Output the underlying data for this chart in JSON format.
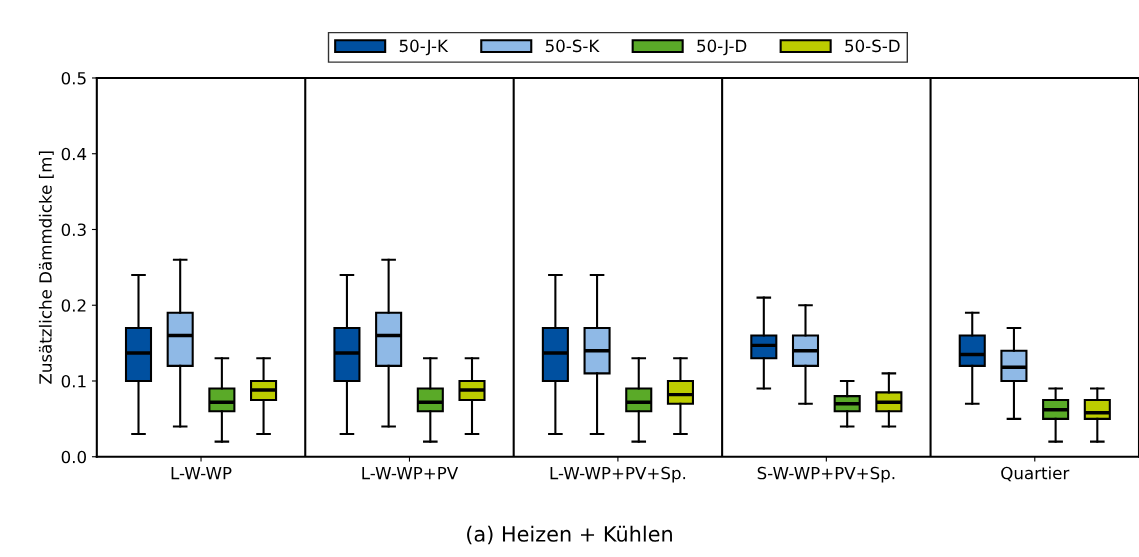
{
  "chart_data": {
    "type": "box",
    "categories": [
      "L-W-WP",
      "L-W-WP+PV",
      "L-W-WP+PV+Sp.",
      "S-W-WP+PV+Sp.",
      "Quartier"
    ],
    "ylabel": "Zusätzliche Dämmdicke [m]",
    "ylim": [
      0,
      0.5
    ],
    "yticks": [
      {
        "value": 0,
        "label": "0.0"
      },
      0.1,
      0.2,
      0.3,
      0.4,
      0.5
    ],
    "grid": "x",
    "legend": "top",
    "annotations": [
      "(a) Heizen + Kühlen"
    ],
    "series": [
      {
        "name": "50-J-K",
        "color": "#0050a0",
        "boxes": [
          {
            "low": 0.03,
            "q1": 0.1,
            "median": 0.137,
            "q3": 0.17,
            "high": 0.24
          },
          {
            "low": 0.03,
            "q1": 0.1,
            "median": 0.137,
            "q3": 0.17,
            "high": 0.24
          },
          {
            "low": 0.03,
            "q1": 0.1,
            "median": 0.137,
            "q3": 0.17,
            "high": 0.24
          },
          {
            "low": 0.09,
            "q1": 0.13,
            "median": 0.147,
            "q3": 0.16,
            "high": 0.21
          },
          {
            "low": 0.07,
            "q1": 0.12,
            "median": 0.135,
            "q3": 0.16,
            "high": 0.19
          }
        ]
      },
      {
        "name": "50-S-K",
        "color": "#8fb9e6",
        "boxes": [
          {
            "low": 0.04,
            "q1": 0.12,
            "median": 0.16,
            "q3": 0.19,
            "high": 0.26
          },
          {
            "low": 0.04,
            "q1": 0.12,
            "median": 0.16,
            "q3": 0.19,
            "high": 0.26
          },
          {
            "low": 0.03,
            "q1": 0.11,
            "median": 0.14,
            "q3": 0.17,
            "high": 0.24
          },
          {
            "low": 0.07,
            "q1": 0.12,
            "median": 0.14,
            "q3": 0.16,
            "high": 0.2
          },
          {
            "low": 0.05,
            "q1": 0.1,
            "median": 0.118,
            "q3": 0.14,
            "high": 0.17
          }
        ]
      },
      {
        "name": "50-J-D",
        "color": "#5aaa28",
        "boxes": [
          {
            "low": 0.02,
            "q1": 0.06,
            "median": 0.072,
            "q3": 0.09,
            "high": 0.13
          },
          {
            "low": 0.02,
            "q1": 0.06,
            "median": 0.072,
            "q3": 0.09,
            "high": 0.13
          },
          {
            "low": 0.02,
            "q1": 0.06,
            "median": 0.072,
            "q3": 0.09,
            "high": 0.13
          },
          {
            "low": 0.04,
            "q1": 0.06,
            "median": 0.07,
            "q3": 0.08,
            "high": 0.1
          },
          {
            "low": 0.02,
            "q1": 0.05,
            "median": 0.062,
            "q3": 0.075,
            "high": 0.09
          }
        ]
      },
      {
        "name": "50-S-D",
        "color": "#bccc00",
        "boxes": [
          {
            "low": 0.03,
            "q1": 0.075,
            "median": 0.088,
            "q3": 0.1,
            "high": 0.13
          },
          {
            "low": 0.03,
            "q1": 0.075,
            "median": 0.088,
            "q3": 0.1,
            "high": 0.13
          },
          {
            "low": 0.03,
            "q1": 0.07,
            "median": 0.082,
            "q3": 0.1,
            "high": 0.13
          },
          {
            "low": 0.04,
            "q1": 0.06,
            "median": 0.072,
            "q3": 0.085,
            "high": 0.11
          },
          {
            "low": 0.02,
            "q1": 0.05,
            "median": 0.058,
            "q3": 0.075,
            "high": 0.09
          }
        ]
      }
    ]
  }
}
